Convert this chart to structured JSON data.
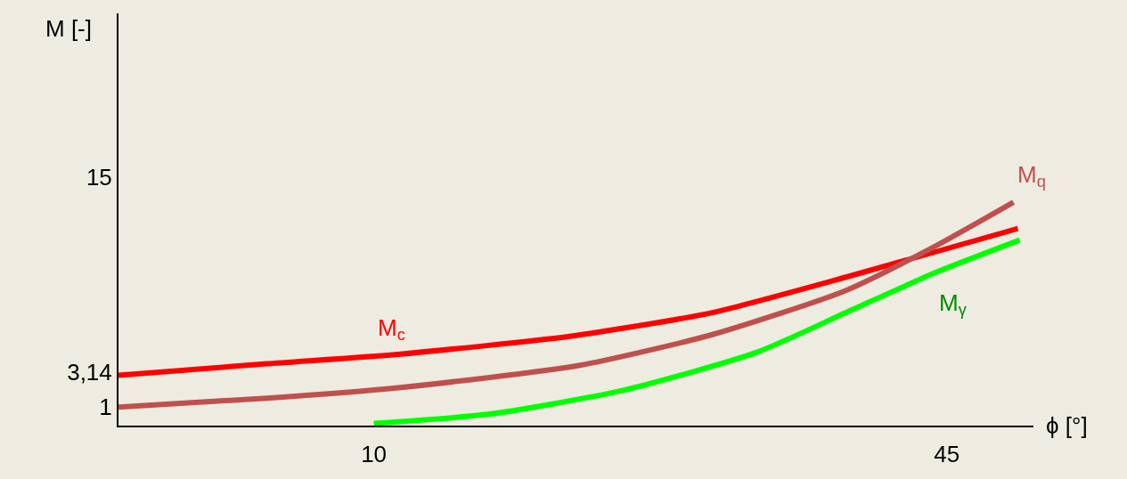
{
  "chart_data": {
    "type": "line",
    "xlabel": "ϕ [°]",
    "ylabel": "M [-]",
    "xlim": [
      -5.6,
      50.3
    ],
    "ylim": [
      -0.13,
      25
    ],
    "xticks": [
      10,
      45
    ],
    "yticks": [
      1,
      {
        "value": 3.14,
        "label": "3,14"
      },
      15
    ],
    "grid": false,
    "legend": false,
    "marker": "none",
    "line_style": "solid",
    "series": [
      {
        "name": "M$_{c}$",
        "color": "#ff0000",
        "x": [
          -5.6,
          3.47,
          11.63,
          21.97,
          30.69,
          38.85,
          49.35
        ],
        "values": [
          2.94,
          3.64,
          4.23,
          5.31,
          6.76,
          8.92,
          11.88
        ]
      },
      {
        "name": "M$_{q}$",
        "color": "#c0504d",
        "x": [
          -5.6,
          3.47,
          11.63,
          22.52,
          30.69,
          38.85,
          44.29,
          49.08
        ],
        "values": [
          1.0,
          1.54,
          2.19,
          3.53,
          5.42,
          8.11,
          10.8,
          13.49
        ]
      },
      {
        "name": "M$_{γ}$",
        "color": "#00ff00",
        "x": [
          10.0,
          17.07,
          25.24,
          33.41,
          38.85,
          44.29,
          49.46
        ],
        "values": [
          0,
          0.57,
          2.02,
          4.34,
          6.76,
          9.19,
          11.18
        ]
      }
    ]
  }
}
